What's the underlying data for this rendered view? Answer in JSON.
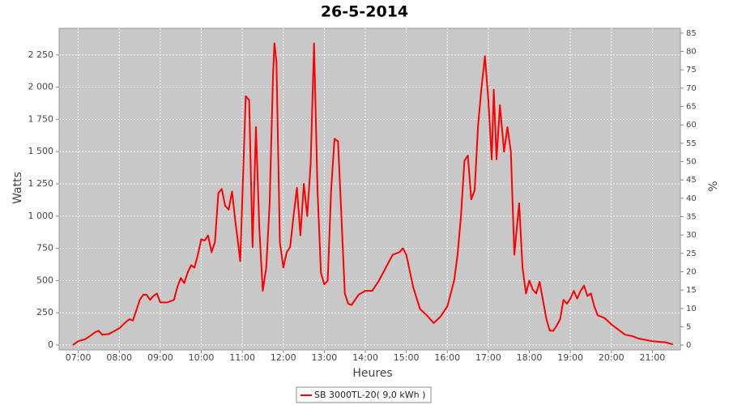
{
  "chart_data": {
    "type": "line",
    "title": "26-5-2014",
    "x_label": "Heures",
    "y_label": "Watts",
    "y2_label": "%",
    "x": [
      "06:52",
      "07:00",
      "07:10",
      "07:20",
      "07:25",
      "07:30",
      "07:35",
      "07:45",
      "08:00",
      "08:10",
      "08:15",
      "08:20",
      "08:30",
      "08:35",
      "08:40",
      "08:45",
      "08:50",
      "08:55",
      "09:00",
      "09:10",
      "09:20",
      "09:25",
      "09:30",
      "09:35",
      "09:40",
      "09:45",
      "09:50",
      "09:55",
      "10:00",
      "10:05",
      "10:10",
      "10:15",
      "10:20",
      "10:25",
      "10:30",
      "10:35",
      "10:40",
      "10:45",
      "10:50",
      "10:52",
      "10:57",
      "11:05",
      "11:10",
      "11:15",
      "11:20",
      "11:25",
      "11:30",
      "11:35",
      "11:40",
      "11:45",
      "11:47",
      "11:50",
      "11:55",
      "12:00",
      "12:05",
      "12:10",
      "12:15",
      "12:20",
      "12:25",
      "12:30",
      "12:35",
      "12:40",
      "12:45",
      "12:50",
      "12:55",
      "13:00",
      "13:05",
      "13:10",
      "13:15",
      "13:20",
      "13:25",
      "13:30",
      "13:35",
      "13:40",
      "13:50",
      "14:00",
      "14:10",
      "14:20",
      "14:30",
      "14:40",
      "14:50",
      "14:55",
      "15:00",
      "15:10",
      "15:20",
      "15:30",
      "15:40",
      "15:50",
      "16:00",
      "16:10",
      "16:15",
      "16:20",
      "16:25",
      "16:30",
      "16:35",
      "16:40",
      "16:45",
      "16:50",
      "16:55",
      "17:00",
      "17:05",
      "17:08",
      "17:12",
      "17:17",
      "17:23",
      "17:28",
      "17:33",
      "17:38",
      "17:45",
      "17:50",
      "17:55",
      "18:00",
      "18:05",
      "18:10",
      "18:15",
      "18:25",
      "18:30",
      "18:35",
      "18:40",
      "18:45",
      "18:50",
      "18:55",
      "19:00",
      "19:05",
      "19:10",
      "19:15",
      "19:20",
      "19:25",
      "19:30",
      "19:35",
      "19:40",
      "19:50",
      "20:00",
      "20:10",
      "20:20",
      "20:30",
      "20:40",
      "20:50",
      "21:00",
      "21:10",
      "21:20",
      "21:30"
    ],
    "series": [
      {
        "name": "SB 3000TL-20( 9,0 kWh )",
        "color": "#ff0000",
        "values": [
          0,
          30,
          45,
          80,
          100,
          110,
          80,
          85,
          130,
          180,
          200,
          190,
          350,
          390,
          390,
          350,
          380,
          400,
          330,
          330,
          350,
          450,
          520,
          480,
          560,
          620,
          600,
          700,
          820,
          810,
          850,
          720,
          800,
          1180,
          1210,
          1080,
          1050,
          1190,
          950,
          870,
          650,
          1930,
          1900,
          760,
          1690,
          900,
          420,
          600,
          1100,
          2100,
          2340,
          2200,
          800,
          600,
          720,
          760,
          1000,
          1220,
          850,
          1250,
          1000,
          1400,
          2340,
          1200,
          560,
          470,
          500,
          1200,
          1600,
          1580,
          1000,
          400,
          320,
          310,
          390,
          420,
          420,
          500,
          600,
          700,
          720,
          750,
          700,
          450,
          280,
          230,
          170,
          220,
          300,
          500,
          700,
          1000,
          1430,
          1470,
          1130,
          1200,
          1700,
          2000,
          2240,
          1900,
          1440,
          1980,
          1440,
          1860,
          1500,
          1690,
          1500,
          700,
          1100,
          600,
          400,
          500,
          430,
          400,
          490,
          200,
          110,
          110,
          150,
          200,
          350,
          320,
          360,
          420,
          360,
          420,
          460,
          380,
          400,
          300,
          230,
          210,
          160,
          120,
          80,
          70,
          50,
          40,
          30,
          25,
          20,
          5
        ]
      }
    ],
    "xlim": [
      "06:32",
      "21:41"
    ],
    "xticks": [
      "07:00",
      "08:00",
      "09:00",
      "10:00",
      "11:00",
      "12:00",
      "13:00",
      "14:00",
      "15:00",
      "16:00",
      "17:00",
      "18:00",
      "19:00",
      "20:00",
      "21:00"
    ],
    "ylim": [
      -38,
      2456
    ],
    "yticks": [
      0,
      250,
      500,
      750,
      {
        "value": 1000,
        "label": "1 000"
      },
      {
        "value": 1250,
        "label": "1 250"
      },
      {
        "value": 1500,
        "label": "1 500"
      },
      {
        "value": 1750,
        "label": "1 750"
      },
      {
        "value": 2000,
        "label": "2 000"
      },
      {
        "value": 2250,
        "label": "2 250"
      }
    ],
    "y2lim": [
      -1.3,
      86.3
    ],
    "y2ticks": [
      0,
      5,
      10,
      15,
      20,
      25,
      30,
      35,
      40,
      45,
      50,
      55,
      60,
      65,
      70,
      75,
      80,
      85
    ],
    "grid": true,
    "legend": "bottom",
    "plot_background": "#c8c8c8"
  }
}
